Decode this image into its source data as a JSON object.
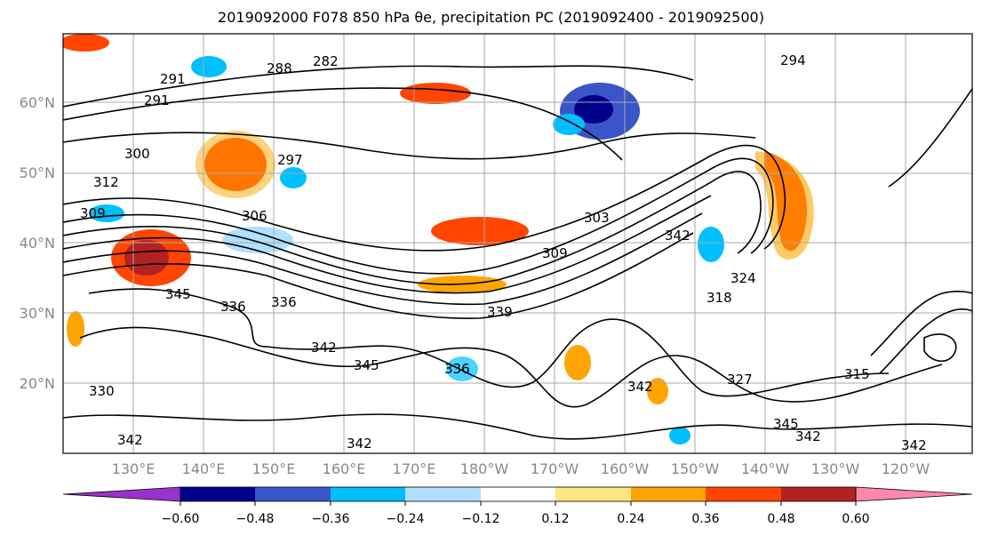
{
  "figure": {
    "title": "2019092000 F078 850 hPa θe, precipitation PC (2019092400 - 2019092500)"
  },
  "map": {
    "projection": "PlateCarree",
    "lat_labels": [
      "60°N",
      "50°N",
      "40°N",
      "30°N",
      "20°N"
    ],
    "lon_labels": [
      "130°E",
      "140°E",
      "150°E",
      "160°E",
      "170°E",
      "180°W",
      "170°W",
      "160°W",
      "150°W",
      "140°W",
      "130°W",
      "120°W"
    ],
    "gridlines": true
  },
  "contour_labels": [
    "291",
    "288",
    "282",
    "294",
    "291",
    "300",
    "297",
    "312",
    "309",
    "306",
    "303",
    "309",
    "345",
    "336",
    "336",
    "339",
    "318",
    "324",
    "342",
    "345",
    "336",
    "342",
    "327",
    "315",
    "345",
    "342",
    "342",
    "342",
    "342",
    "342",
    "330"
  ],
  "colorbar": {
    "tick_labels": [
      "−0.60",
      "−0.48",
      "−0.36",
      "−0.24",
      "−0.12",
      "0.12",
      "0.24",
      "0.36",
      "0.48",
      "0.60"
    ],
    "colors": [
      "#9932cc",
      "#00008b",
      "#3a55c8",
      "#00bfff",
      "#b0e0ff",
      "#ffffff",
      "#ffe680",
      "#ffa500",
      "#ff4500",
      "#b22222",
      "#ff88aa"
    ]
  }
}
